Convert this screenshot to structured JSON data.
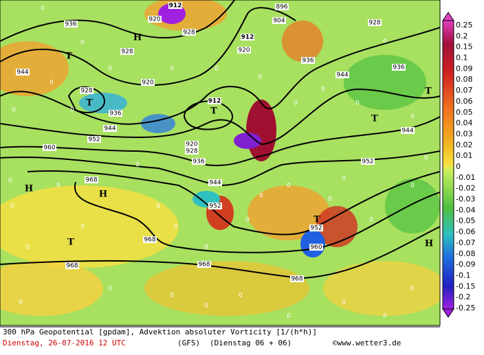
{
  "map": {
    "contour_labels": [
      "912",
      "920",
      "936",
      "928",
      "928",
      "920",
      "928",
      "936",
      "944",
      "952",
      "960",
      "912",
      "912",
      "920",
      "896",
      "904",
      "928",
      "936",
      "936",
      "944",
      "944",
      "952",
      "920",
      "928",
      "936",
      "944",
      "952",
      "968",
      "968",
      "952",
      "960",
      "968",
      "968",
      "968",
      "944"
    ],
    "pressure_systems": [
      "T",
      "H",
      "T",
      "T",
      "T",
      "T",
      "H",
      "H",
      "T",
      "T",
      "H"
    ],
    "zero_labels": [
      "0",
      "0",
      "0",
      "0",
      "0",
      "0",
      "0",
      "0",
      "0",
      "0",
      "0",
      "0",
      "0",
      "0",
      "0",
      "0",
      "0",
      "0",
      "0",
      "0",
      "0",
      "0",
      "0",
      "0",
      "0",
      "0",
      "0",
      "0",
      "0",
      "0",
      "0",
      "0",
      "0",
      "0",
      "0",
      "0",
      "0",
      "0",
      "0",
      "0"
    ]
  },
  "colorbar": {
    "labels": [
      "0.25",
      "0.2",
      "0.15",
      "0.1",
      "0.09",
      "0.08",
      "0.07",
      "0.06",
      "0.05",
      "0.04",
      "0.03",
      "0.02",
      "0.01",
      "0",
      "-0.01",
      "-0.02",
      "-0.03",
      "-0.04",
      "-0.05",
      "-0.06",
      "-0.07",
      "-0.08",
      "-0.09",
      "-0.1",
      "-0.15",
      "-0.2",
      "-0.25"
    ]
  },
  "footer": {
    "title": "300 hPa Geopotential [gpdam], Advektion absoluter Vorticity [1/(h*h)]",
    "date": "Dienstag, 26-07-2016  12 UTC",
    "model": "(GFS)",
    "run": "(Dienstag 06 + 06)",
    "credit": "©www.wetter3.de"
  }
}
